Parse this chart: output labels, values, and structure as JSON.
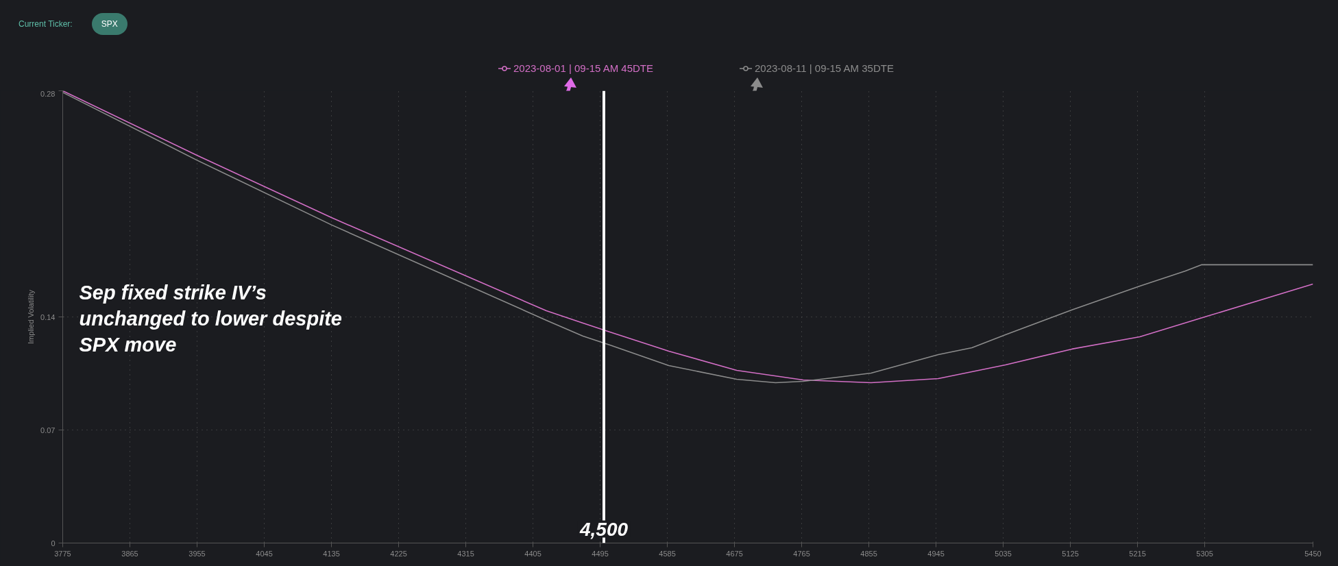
{
  "chart_data": {
    "type": "line",
    "ylabel": "Implied Volatility",
    "annotations": [
      "Current Ticker:",
      "SPX",
      "Sep fixed strike IV’s\nunchanged to lower despite\nSPX move"
    ],
    "series": [
      {
        "name": "2023-08-01 | 09-15 AM 45DTE",
        "color": "#d36fc6",
        "x": [
          3775,
          3955,
          4135,
          4423,
          4472,
          4508,
          4587,
          4678,
          4767,
          4858,
          4948,
          5038,
          5127,
          5218,
          5308,
          5450
        ],
        "values": [
          0.28,
          0.24,
          0.2015,
          0.1438,
          0.1362,
          0.1307,
          0.1188,
          0.1069,
          0.101,
          0.0993,
          0.1018,
          0.1103,
          0.1201,
          0.1277,
          0.1404,
          0.1604
        ]
      },
      {
        "name": "2023-08-11 | 09-15 AM 35DTE",
        "color": "#8c8c8c",
        "x": [
          3775,
          3955,
          4135,
          4423,
          4472,
          4508,
          4587,
          4678,
          4730,
          4767,
          4821,
          4858,
          4948,
          4993,
          5038,
          5127,
          5218,
          5279,
          5301,
          5450
        ],
        "values": [
          0.279,
          0.237,
          0.197,
          0.1379,
          0.1281,
          0.1226,
          0.1099,
          0.1014,
          0.0993,
          0.1001,
          0.1031,
          0.1052,
          0.1167,
          0.1209,
          0.129,
          0.1443,
          0.1591,
          0.1684,
          0.1723,
          0.1723
        ]
      }
    ],
    "xlim": [
      3775,
      5450
    ],
    "xticks": [
      3775,
      3865,
      3955,
      4045,
      4135,
      4225,
      4315,
      4405,
      4495,
      4585,
      4675,
      4765,
      4855,
      4945,
      5035,
      5125,
      5215,
      5305,
      5450
    ],
    "ylim": [
      0,
      0.28
    ],
    "yticks": [
      0,
      0.07,
      0.14,
      0.28
    ],
    "ref_lines": [
      {
        "axis": "x",
        "value": 4500,
        "label": "4,500",
        "color": "#ffffff"
      }
    ],
    "grid": true,
    "legend": "top",
    "marker": "none",
    "line_style": "solid"
  }
}
